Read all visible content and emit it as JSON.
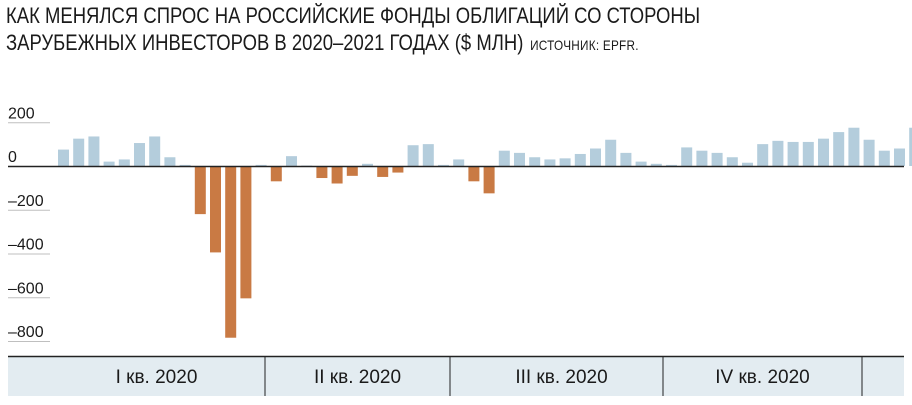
{
  "title_line1": "КАК МЕНЯЛСЯ СПРОС НА РОССИЙСКИЕ ФОНДЫ ОБЛИГАЦИЙ СО СТОРОНЫ",
  "title_line2": "ЗАРУБЕЖНЫХ ИНВЕСТОРОВ В 2020–2021 ГОДАХ ($ МЛН)",
  "source": "ИСТОЧНИК: EPFR.",
  "colors": {
    "positive": "#b4cddc",
    "negative": "#c97a44",
    "band": "#e3ecf1",
    "axis": "#222222",
    "grid": "#bfbfbf"
  },
  "chart_data": {
    "type": "bar",
    "title": "КАК МЕНЯЛСЯ СПРОС НА РОССИЙСКИЕ ФОНДЫ ОБЛИГАЦИЙ СО СТОРОНЫ ЗАРУБЕЖНЫХ ИНВЕСТОРОВ В 2020–2021 ГОДАХ ($ МЛН)",
    "xlabel": "",
    "ylabel": "",
    "ylim": [
      -800,
      200
    ],
    "yticks": [
      200,
      0,
      -200,
      -400,
      -600,
      -800
    ],
    "ytick_labels": [
      "200",
      "0",
      "–200",
      "–400",
      "–600",
      "–800"
    ],
    "grid": true,
    "legend": "none",
    "quarters": [
      "I кв. 2020",
      "II кв. 2020",
      "III кв. 2020",
      "IV кв. 2020"
    ],
    "quarter_bar_counts": [
      13,
      13,
      13,
      13
    ],
    "values": [
      75,
      125,
      135,
      20,
      30,
      105,
      135,
      40,
      5,
      -220,
      -395,
      -785,
      -605,
      5,
      -70,
      45,
      2,
      -55,
      -80,
      -45,
      10,
      -50,
      -30,
      95,
      100,
      5,
      30,
      -70,
      -125,
      70,
      60,
      40,
      30,
      35,
      55,
      80,
      120,
      60,
      20,
      10,
      5,
      85,
      70,
      60,
      40,
      15,
      100,
      115,
      110,
      110,
      125,
      155,
      175,
      120,
      70,
      80,
      175
    ]
  }
}
